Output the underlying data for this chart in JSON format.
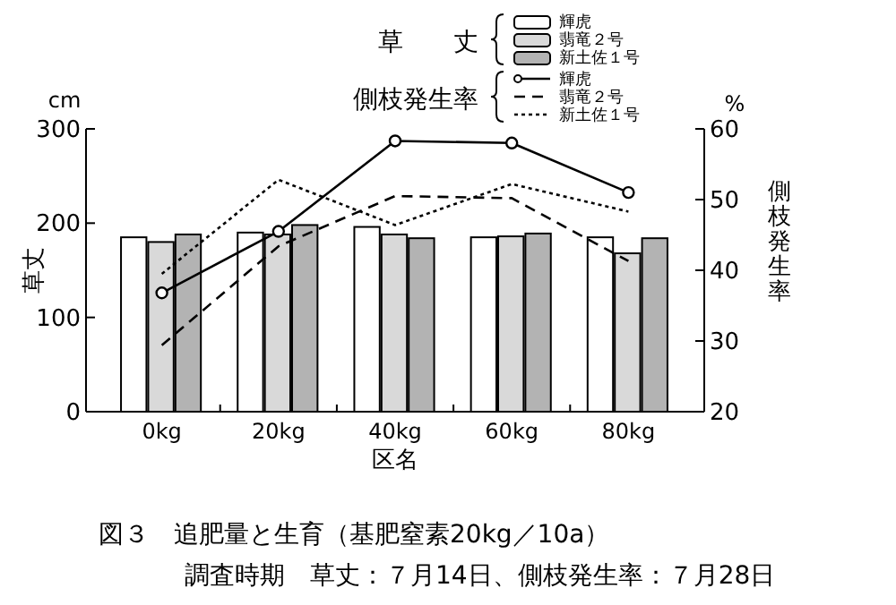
{
  "chart_data": {
    "type": "bar",
    "categories": [
      "0kg",
      "20kg",
      "40kg",
      "60kg",
      "80kg"
    ],
    "xlabel": "区名",
    "ylabel": "草丈",
    "y2label": "側枝発生率",
    "ylim": [
      0,
      300
    ],
    "yticks": [
      0,
      100,
      200,
      300
    ],
    "y2lim": [
      20,
      60
    ],
    "y2ticks": [
      20,
      30,
      40,
      50,
      60
    ],
    "legend": "top right",
    "grid": false,
    "annotations": [
      "cm",
      "%",
      "草　　丈",
      "側枝発生率",
      "図３　追肥量と生育（基肥窒素20kg／10a）",
      "調査時期　草丈：７月14日、側枝発生率：７月28日"
    ],
    "series": [
      {
        "name": "輝虎",
        "color": "#ffffff",
        "values": [
          185,
          190,
          196,
          185,
          185
        ]
      },
      {
        "name": "翡竜２号",
        "color": "#d9d9d9",
        "values": [
          180,
          188,
          188,
          186,
          168
        ]
      },
      {
        "name": "新土佐１号",
        "color": "#b3b3b3",
        "values": [
          188,
          198,
          184,
          189,
          184
        ]
      },
      {
        "type": "line",
        "axis": "y2",
        "name": "輝虎",
        "color": "#000000",
        "line_style": "solid",
        "marker": "circle",
        "values": [
          36.8,
          45.5,
          58.3,
          58,
          51
        ]
      },
      {
        "type": "line",
        "axis": "y2",
        "name": "翡竜２号",
        "color": "#000000",
        "line_style": "dashed",
        "marker": "none",
        "values": [
          29.4,
          43.4,
          50.5,
          50.2,
          41.3
        ]
      },
      {
        "type": "line",
        "axis": "y2",
        "name": "新土佐１号",
        "color": "#000000",
        "line_style": "dotted",
        "marker": "none",
        "values": [
          39.5,
          52.8,
          46.4,
          52.2,
          48.3
        ]
      }
    ]
  }
}
